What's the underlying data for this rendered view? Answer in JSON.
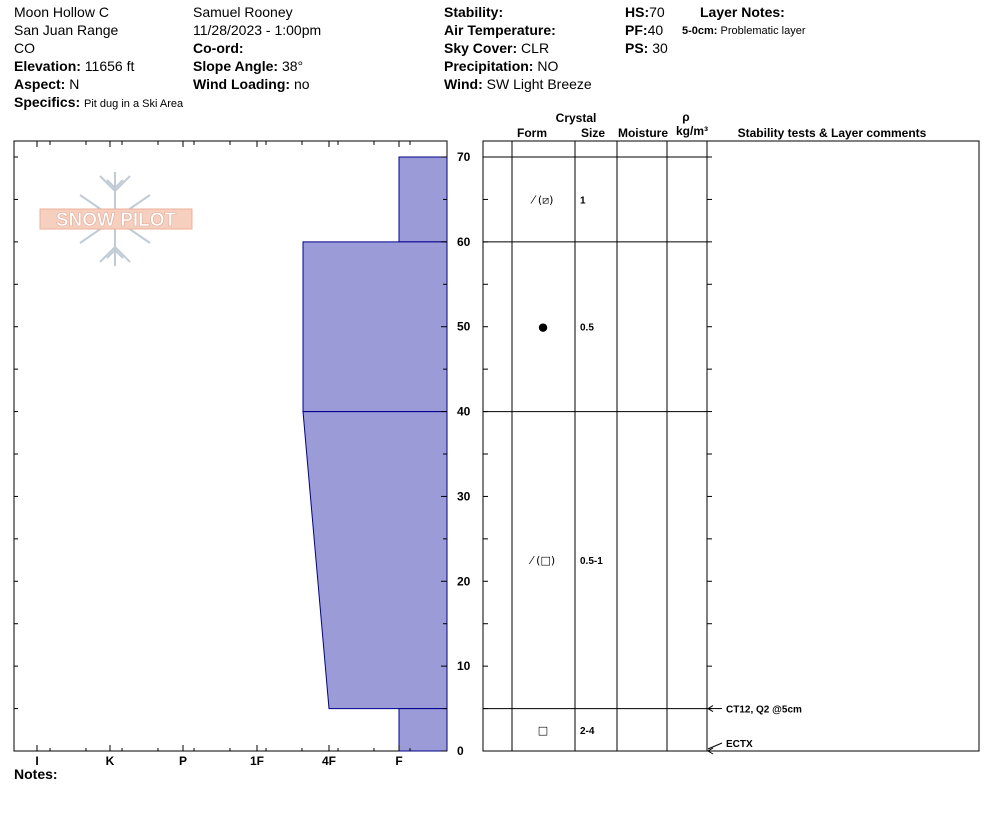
{
  "header": {
    "location": "Moon Hollow C",
    "range": "San Juan Range",
    "state": "CO",
    "elevation_label": "Elevation:",
    "elevation_value": "11656 ft",
    "aspect_label": "Aspect:",
    "aspect_value": "N",
    "specifics_label": "Specifics:",
    "specifics_value": "Pit dug in a Ski Area",
    "observer": "Samuel  Rooney",
    "datetime": "11/28/2023 - 1:00pm",
    "coord_label": "Co-ord:",
    "slope_label": "Slope Angle:",
    "slope_value": "38°",
    "wind_loading_label": "Wind Loading:",
    "wind_loading_value": "no",
    "stability_label": "Stability:",
    "air_temp_label": "Air Temperature:",
    "sky_label": "Sky Cover:",
    "sky_value": "CLR",
    "precip_label": "Precipitation:",
    "precip_value": "NO",
    "wind_label": "Wind:",
    "wind_value": "SW Light Breeze",
    "hs_label": "HS:",
    "hs_value": "70",
    "pf_label": "PF:",
    "pf_value": "40",
    "ps_label": "PS:",
    "ps_value": "30",
    "layer_notes_label": "Layer Notes:",
    "layer_note_range": "5-0cm:",
    "layer_note_text": "Problematic layer"
  },
  "logo": {
    "text": "SNOW PILOT"
  },
  "notes_label": "Notes:",
  "columns": {
    "crystal": "Crystal",
    "form": "Form",
    "size": "Size",
    "moisture": "Moisture",
    "rho": "ρ",
    "density_unit": "kg/m³",
    "stability": "Stability tests & Layer comments"
  },
  "colors": {
    "hardness_fill": "#9b9bd7",
    "hardness_stroke": "#00008b"
  },
  "chart_data": {
    "type": "area",
    "hardness_scale": [
      "I",
      "K",
      "P",
      "1F",
      "4F",
      "F"
    ],
    "ylim": [
      0,
      70
    ],
    "y_ticks": [
      0,
      10,
      20,
      30,
      40,
      50,
      60,
      70
    ],
    "layers": [
      {
        "top": 70,
        "bottom": 60,
        "hardness_top": "F",
        "hardness_bottom": "F"
      },
      {
        "top": 60,
        "bottom": 40,
        "hardness_top": "1F-4F",
        "hardness_bottom": "1F-4F"
      },
      {
        "top": 40,
        "bottom": 5,
        "hardness_top": "1F-4F",
        "hardness_bottom": "4F"
      },
      {
        "top": 5,
        "bottom": 0,
        "hardness_top": "F",
        "hardness_bottom": "F"
      }
    ],
    "crystals": [
      {
        "depth": 65,
        "form": "⁄ (⧄)",
        "size": "1"
      },
      {
        "depth": 50,
        "form": "●",
        "size": "0.5"
      },
      {
        "depth": 22.5,
        "form": "⁄ (□)",
        "size": "0.5-1"
      },
      {
        "depth": 2.5,
        "form": "□",
        "size": "2-4"
      }
    ],
    "tests": [
      {
        "depth": 5,
        "label": "CT12, Q2 @5cm"
      },
      {
        "depth": 0,
        "label": "ECTX"
      }
    ]
  }
}
